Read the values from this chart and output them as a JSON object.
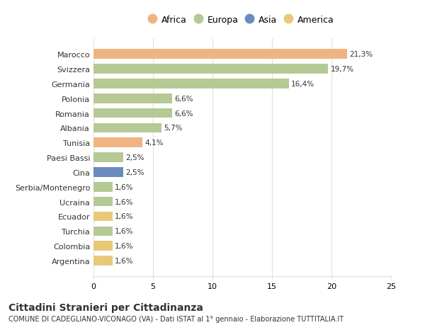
{
  "countries": [
    "Argentina",
    "Colombia",
    "Turchia",
    "Ecuador",
    "Ucraina",
    "Serbia/Montenegro",
    "Cina",
    "Paesi Bassi",
    "Tunisia",
    "Albania",
    "Romania",
    "Polonia",
    "Germania",
    "Svizzera",
    "Marocco"
  ],
  "values": [
    1.6,
    1.6,
    1.6,
    1.6,
    1.6,
    1.6,
    2.5,
    2.5,
    4.1,
    5.7,
    6.6,
    6.6,
    16.4,
    19.7,
    21.3
  ],
  "labels": [
    "1,6%",
    "1,6%",
    "1,6%",
    "1,6%",
    "1,6%",
    "1,6%",
    "2,5%",
    "2,5%",
    "4,1%",
    "5,7%",
    "6,6%",
    "6,6%",
    "16,4%",
    "19,7%",
    "21,3%"
  ],
  "colors": [
    "#e8c97a",
    "#e8c97a",
    "#b5c994",
    "#e8c97a",
    "#b5c994",
    "#b5c994",
    "#6b8bbf",
    "#b5c994",
    "#f0b482",
    "#b5c994",
    "#b5c994",
    "#b5c994",
    "#b5c994",
    "#b5c994",
    "#f0b482"
  ],
  "continent_colors": {
    "Africa": "#f0b482",
    "Europa": "#b5c994",
    "Asia": "#6b8bbf",
    "America": "#e8c97a"
  },
  "title": "Cittadini Stranieri per Cittadinanza",
  "subtitle": "COMUNE DI CADEGLIANO-VICONAGO (VA) - Dati ISTAT al 1° gennaio - Elaborazione TUTTITALIA.IT",
  "xlim": [
    0,
    25
  ],
  "xticks": [
    0,
    5,
    10,
    15,
    20,
    25
  ],
  "background_color": "#ffffff",
  "bar_height": 0.65,
  "grid_color": "#e0e0e0",
  "text_color": "#333333"
}
